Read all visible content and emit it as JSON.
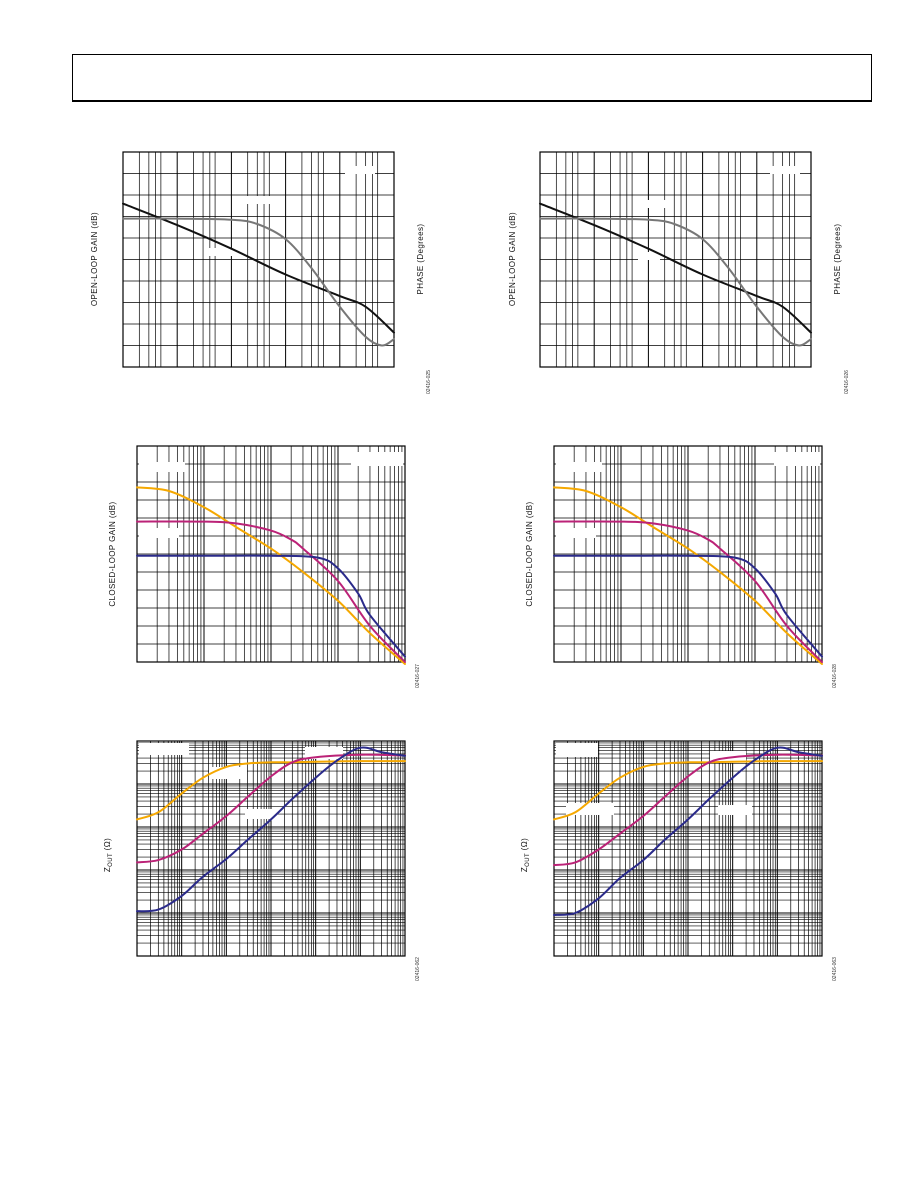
{
  "header": {
    "title": ""
  },
  "chart_data": [
    {
      "id": "c1",
      "type": "line",
      "ylabel": "OPEN-LOOP GAIN (dB)",
      "y2label": "PHASE (Degrees)",
      "figure_number": "02416-025",
      "xscale": "log",
      "xlim": [
        1,
        100000
      ],
      "ylim": [
        0,
        10
      ],
      "grid": true,
      "series": [
        {
          "role": "gain",
          "color": "#111111",
          "x": [
            1,
            10,
            100,
            1000,
            10000,
            30000,
            100000
          ],
          "y": [
            7.6,
            6.6,
            5.5,
            4.3,
            3.3,
            2.8,
            1.6
          ]
        },
        {
          "role": "phase",
          "color": "#777777",
          "x": [
            1,
            10,
            100,
            300,
            1000,
            3000,
            10000,
            30000,
            60000,
            100000
          ],
          "y": [
            6.9,
            6.9,
            6.85,
            6.65,
            5.95,
            4.6,
            2.8,
            1.4,
            1.0,
            1.3
          ]
        }
      ]
    },
    {
      "id": "c2",
      "type": "line",
      "ylabel": "OPEN-LOOP GAIN (dB)",
      "y2label": "PHASE (Degrees)",
      "figure_number": "02416-026",
      "xscale": "log",
      "xlim": [
        1,
        100000
      ],
      "ylim": [
        0,
        10
      ],
      "grid": true,
      "series": [
        {
          "role": "gain",
          "color": "#111111",
          "x": [
            1,
            10,
            100,
            1000,
            10000,
            30000,
            100000
          ],
          "y": [
            7.6,
            6.6,
            5.5,
            4.3,
            3.3,
            2.8,
            1.6
          ]
        },
        {
          "role": "phase",
          "color": "#777777",
          "x": [
            1,
            10,
            100,
            300,
            1000,
            3000,
            10000,
            30000,
            60000,
            100000
          ],
          "y": [
            6.9,
            6.9,
            6.85,
            6.65,
            5.95,
            4.6,
            2.8,
            1.4,
            1.0,
            1.3
          ]
        }
      ]
    },
    {
      "id": "c3",
      "type": "line",
      "ylabel": "CLOSED-LOOP GAIN (dB)",
      "figure_number": "02416-027",
      "xscale": "log",
      "xlim": [
        1,
        10000
      ],
      "ylim": [
        0,
        12
      ],
      "grid": true,
      "series": [
        {
          "role": "gain",
          "color": "#f5a800",
          "x": [
            1,
            3,
            10,
            30,
            100,
            300,
            1000,
            3000,
            10000
          ],
          "y": [
            9.7,
            9.5,
            8.6,
            7.5,
            6.3,
            5.0,
            3.4,
            1.6,
            -0.2
          ]
        },
        {
          "role": "gain",
          "color": "#bb2277",
          "x": [
            1,
            10,
            30,
            100,
            200,
            300,
            1000,
            3000,
            10000
          ],
          "y": [
            7.8,
            7.8,
            7.7,
            7.3,
            6.8,
            6.3,
            4.5,
            2.0,
            0.0
          ]
        },
        {
          "role": "gain",
          "color": "#2a2a8a",
          "x": [
            1,
            10,
            100,
            500,
            1000,
            2000,
            3000,
            10000
          ],
          "y": [
            5.9,
            5.9,
            5.9,
            5.8,
            5.2,
            3.8,
            2.6,
            0.3
          ]
        }
      ]
    },
    {
      "id": "c4",
      "type": "line",
      "ylabel": "CLOSED-LOOP GAIN (dB)",
      "figure_number": "02416-028",
      "xscale": "log",
      "xlim": [
        1,
        10000
      ],
      "ylim": [
        0,
        12
      ],
      "grid": true,
      "series": [
        {
          "role": "gain",
          "color": "#f5a800",
          "x": [
            1,
            3,
            10,
            30,
            100,
            300,
            1000,
            3000,
            10000
          ],
          "y": [
            9.7,
            9.5,
            8.6,
            7.5,
            6.3,
            5.0,
            3.4,
            1.6,
            -0.2
          ]
        },
        {
          "role": "gain",
          "color": "#bb2277",
          "x": [
            1,
            10,
            30,
            100,
            200,
            300,
            1000,
            3000,
            10000
          ],
          "y": [
            7.8,
            7.8,
            7.7,
            7.3,
            6.8,
            6.3,
            4.5,
            2.0,
            0.0
          ]
        },
        {
          "role": "gain",
          "color": "#2a2a8a",
          "x": [
            1,
            10,
            100,
            500,
            1000,
            2000,
            3000,
            10000
          ],
          "y": [
            5.9,
            5.9,
            5.9,
            5.8,
            5.2,
            3.8,
            2.6,
            0.3
          ]
        }
      ]
    },
    {
      "id": "c5",
      "type": "line",
      "ylabel": "Z",
      "ylabel_sub": "OUT",
      "ylabel_unit": "(Ω)",
      "figure_number": "02416-062",
      "xscale": "log",
      "xlim": [
        1,
        1000000
      ],
      "yscale": "log",
      "ylim": [
        0.001,
        100
      ],
      "grid": true,
      "series": [
        {
          "role": "impedance",
          "color": "#f5a800",
          "x": [
            1,
            3,
            10,
            30,
            100,
            300,
            1000,
            3000,
            10000,
            100000,
            1000000
          ],
          "y": [
            1.5,
            2.2,
            6,
            14,
            25,
            30,
            32,
            32,
            33,
            34,
            34
          ]
        },
        {
          "role": "impedance",
          "color": "#bb2277",
          "x": [
            1,
            3,
            10,
            30,
            100,
            300,
            1000,
            3000,
            10000,
            100000,
            1000000
          ],
          "y": [
            0.15,
            0.17,
            0.3,
            0.7,
            1.8,
            5,
            15,
            32,
            42,
            48,
            46
          ]
        },
        {
          "role": "impedance",
          "color": "#2a2a8a",
          "x": [
            1,
            3,
            10,
            30,
            100,
            300,
            1000,
            3000,
            10000,
            30000,
            100000,
            300000,
            1000000
          ],
          "y": [
            0.011,
            0.012,
            0.025,
            0.07,
            0.18,
            0.5,
            1.5,
            4.5,
            14,
            35,
            70,
            55,
            45
          ]
        }
      ]
    },
    {
      "id": "c6",
      "type": "line",
      "ylabel": "Z",
      "ylabel_sub": "OUT",
      "ylabel_unit": "(Ω)",
      "figure_number": "02416-063",
      "xscale": "log",
      "xlim": [
        1,
        1000000
      ],
      "yscale": "log",
      "ylim": [
        0.001,
        100
      ],
      "grid": true,
      "series": [
        {
          "role": "impedance",
          "color": "#f5a800",
          "x": [
            1,
            3,
            10,
            30,
            100,
            300,
            1000,
            3000,
            10000,
            100000,
            1000000
          ],
          "y": [
            1.5,
            2.2,
            6,
            14,
            25,
            30,
            32,
            32,
            33,
            34,
            34
          ]
        },
        {
          "role": "impedance",
          "color": "#bb2277",
          "x": [
            1,
            3,
            10,
            30,
            100,
            300,
            1000,
            3000,
            10000,
            100000,
            1000000
          ],
          "y": [
            0.13,
            0.15,
            0.3,
            0.7,
            1.8,
            5,
            15,
            32,
            42,
            48,
            46
          ]
        },
        {
          "role": "impedance",
          "color": "#2a2a8a",
          "x": [
            1,
            3,
            10,
            30,
            100,
            300,
            1000,
            3000,
            10000,
            30000,
            100000,
            300000,
            1000000
          ],
          "y": [
            0.009,
            0.01,
            0.022,
            0.065,
            0.17,
            0.5,
            1.5,
            4.5,
            14,
            35,
            70,
            55,
            45
          ]
        }
      ]
    }
  ]
}
